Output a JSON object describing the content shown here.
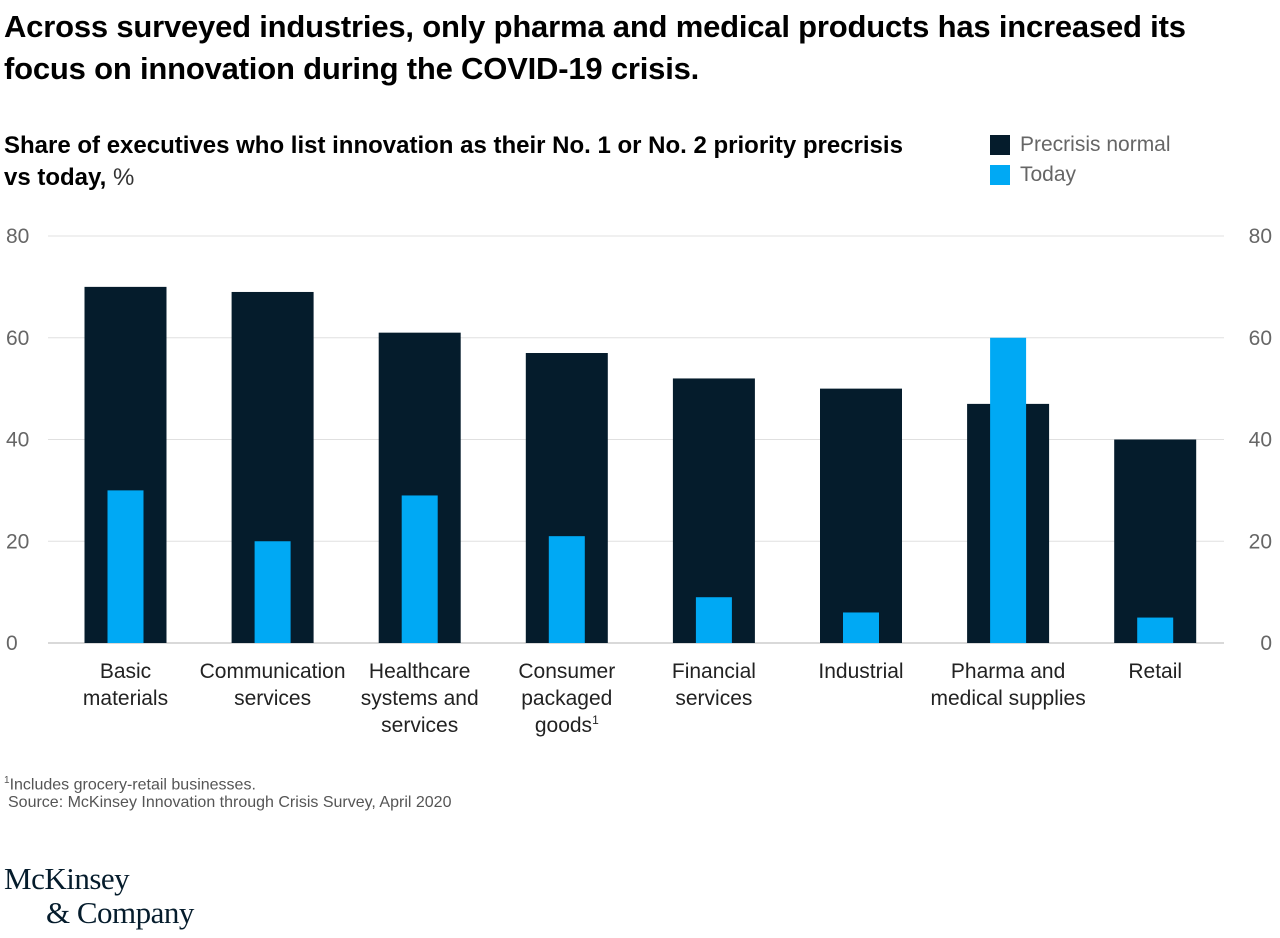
{
  "headline": "Across surveyed industries, only pharma and medical products has increased its focus on innovation during the COVID-19 crisis.",
  "subtitle": {
    "text": "Share of executives who list innovation as their No. 1 or No. 2 priority precrisis vs today,",
    "unit": "%"
  },
  "legend": [
    {
      "label": "Precrisis normal",
      "color": "#051c2c"
    },
    {
      "label": "Today",
      "color": "#00a9f4"
    }
  ],
  "chart_data": {
    "type": "bar",
    "title": "Share of executives who list innovation as their No. 1 or No. 2 priority precrisis vs today, %",
    "categories": [
      {
        "lines": [
          "Basic",
          "materials"
        ],
        "sup": ""
      },
      {
        "lines": [
          "Communication",
          "services"
        ],
        "sup": ""
      },
      {
        "lines": [
          "Healthcare",
          "systems and",
          "services"
        ],
        "sup": ""
      },
      {
        "lines": [
          "Consumer",
          "packaged",
          "goods"
        ],
        "sup": "1"
      },
      {
        "lines": [
          "Financial",
          "services"
        ],
        "sup": ""
      },
      {
        "lines": [
          "Industrial"
        ],
        "sup": ""
      },
      {
        "lines": [
          "Pharma and",
          "medical supplies"
        ],
        "sup": ""
      },
      {
        "lines": [
          "Retail"
        ],
        "sup": ""
      }
    ],
    "series": [
      {
        "name": "Precrisis normal",
        "color": "#051c2c",
        "values": [
          70,
          69,
          61,
          57,
          52,
          50,
          47,
          40
        ]
      },
      {
        "name": "Today",
        "color": "#00a9f4",
        "values": [
          30,
          20,
          29,
          21,
          9,
          6,
          60,
          5
        ]
      }
    ],
    "ylim": [
      0,
      80
    ],
    "yticks": [
      0,
      20,
      40,
      60,
      80
    ],
    "axes": "left and right",
    "grid": true
  },
  "footnote": {
    "marker": "1",
    "text": "Includes grocery-retail businesses."
  },
  "source": "Source: McKinsey Innovation through Crisis Survey, April 2020",
  "logo": {
    "line1": "McKinsey",
    "line2": "& Company"
  }
}
